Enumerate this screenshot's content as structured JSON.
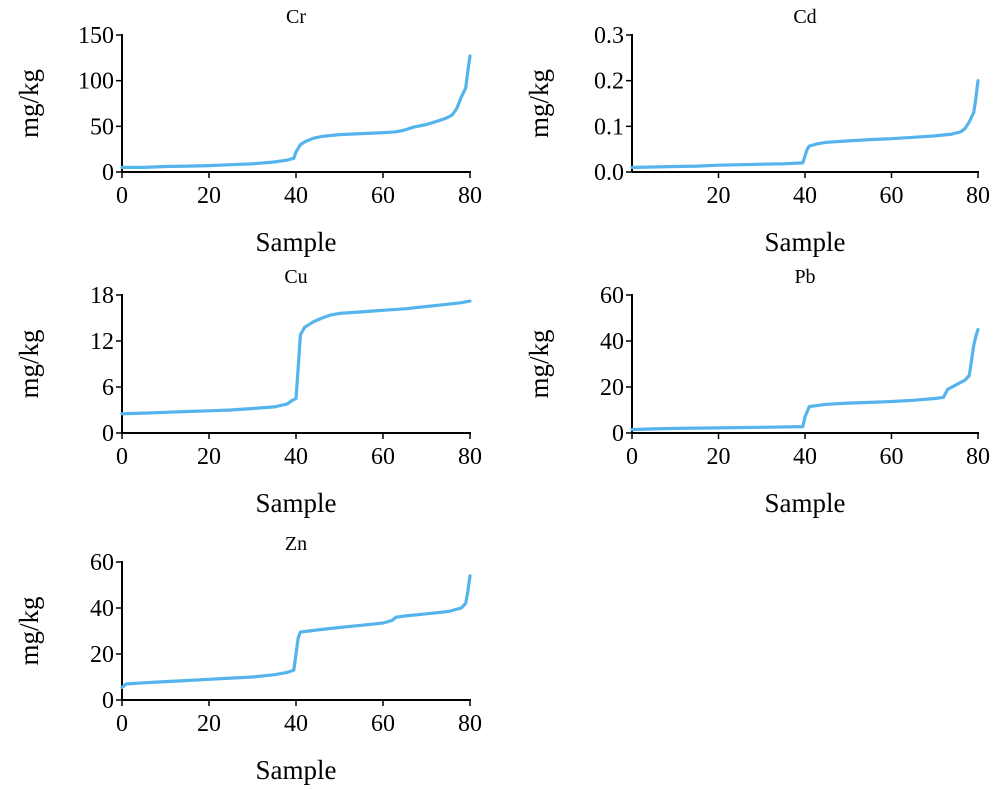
{
  "colors": {
    "line": "#55b4ec",
    "axis": "#000000"
  },
  "chart_data": [
    {
      "type": "line",
      "title": "Cr",
      "xlabel": "Sample",
      "ylabel": "mg/kg",
      "xlim": [
        0,
        80
      ],
      "ylim": [
        0,
        150
      ],
      "xticks": [
        0,
        20,
        40,
        60,
        80
      ],
      "xtick_labels": [
        "0",
        "20",
        "40",
        "60",
        "80"
      ],
      "yticks": [
        0,
        50,
        100,
        150
      ],
      "ytick_labels": [
        "0",
        "50",
        "100",
        "150"
      ],
      "grid": false,
      "series": [
        {
          "x": [
            0,
            5,
            10,
            15,
            20,
            25,
            30,
            35,
            38,
            39.5,
            40,
            40.5,
            41,
            42,
            44,
            46,
            48,
            50,
            55,
            60,
            63,
            65,
            67,
            70,
            72,
            74,
            75,
            76,
            77,
            78,
            79,
            79.5,
            80
          ],
          "y": [
            5,
            5,
            6,
            6.5,
            7,
            8,
            9,
            11,
            13,
            15,
            22,
            26,
            30,
            33,
            37,
            39,
            40,
            41,
            42,
            43,
            44,
            46,
            49,
            52,
            55,
            58,
            60,
            63,
            70,
            82,
            92,
            110,
            127
          ]
        }
      ]
    },
    {
      "type": "line",
      "title": "Cd",
      "xlabel": "Sample",
      "ylabel": "mg/kg",
      "xlim": [
        0,
        80
      ],
      "ylim": [
        0,
        0.3
      ],
      "xticks": [
        20,
        40,
        60,
        80
      ],
      "xtick_labels": [
        "20",
        "40",
        "60",
        "80"
      ],
      "yticks": [
        0,
        0.1,
        0.2,
        0.3
      ],
      "ytick_labels": [
        "0.0",
        "0.1",
        "0.2",
        "0.3"
      ],
      "grid": false,
      "series": [
        {
          "x": [
            0,
            5,
            10,
            15,
            20,
            25,
            30,
            35,
            39.5,
            40,
            40.5,
            41,
            43,
            45,
            50,
            55,
            60,
            65,
            70,
            74,
            76,
            77,
            78,
            79,
            79.5,
            80
          ],
          "y": [
            0.01,
            0.011,
            0.012,
            0.013,
            0.015,
            0.016,
            0.017,
            0.018,
            0.02,
            0.035,
            0.05,
            0.057,
            0.062,
            0.065,
            0.068,
            0.071,
            0.073,
            0.076,
            0.079,
            0.083,
            0.088,
            0.095,
            0.11,
            0.13,
            0.16,
            0.2
          ]
        }
      ]
    },
    {
      "type": "line",
      "title": "Cu",
      "xlabel": "Sample",
      "ylabel": "mg/kg",
      "xlim": [
        0,
        80
      ],
      "ylim": [
        0,
        18
      ],
      "xticks": [
        0,
        20,
        40,
        60,
        80
      ],
      "xtick_labels": [
        "0",
        "20",
        "40",
        "60",
        "80"
      ],
      "yticks": [
        0,
        6,
        12,
        18
      ],
      "ytick_labels": [
        "0",
        "6",
        "12",
        "18"
      ],
      "grid": false,
      "series": [
        {
          "x": [
            0,
            5,
            10,
            15,
            20,
            25,
            30,
            35,
            38,
            39,
            40,
            40.5,
            41,
            42,
            44,
            46,
            48,
            50,
            55,
            60,
            65,
            70,
            75,
            78,
            80
          ],
          "y": [
            2.5,
            2.6,
            2.7,
            2.8,
            2.9,
            3.0,
            3.2,
            3.4,
            3.8,
            4.2,
            4.5,
            8.5,
            12.8,
            13.8,
            14.5,
            15.0,
            15.4,
            15.6,
            15.8,
            16.0,
            16.2,
            16.5,
            16.8,
            17.0,
            17.2
          ]
        }
      ]
    },
    {
      "type": "line",
      "title": "Pb",
      "xlabel": "Sample",
      "ylabel": "mg/kg",
      "xlim": [
        0,
        80
      ],
      "ylim": [
        0,
        60
      ],
      "xticks": [
        0,
        20,
        40,
        60,
        80
      ],
      "xtick_labels": [
        "0",
        "20",
        "40",
        "60",
        "80"
      ],
      "yticks": [
        0,
        20,
        40,
        60
      ],
      "ytick_labels": [
        "0",
        "20",
        "40",
        "60"
      ],
      "grid": false,
      "series": [
        {
          "x": [
            0,
            5,
            10,
            20,
            30,
            39.5,
            40,
            41,
            45,
            50,
            55,
            60,
            65,
            70,
            72,
            73,
            75,
            77,
            78,
            79,
            79.5,
            80
          ],
          "y": [
            1.5,
            1.8,
            2.0,
            2.2,
            2.5,
            2.8,
            7,
            11.5,
            12.5,
            13,
            13.3,
            13.7,
            14.2,
            15.0,
            15.5,
            19,
            21,
            23,
            25,
            38,
            42,
            45
          ]
        }
      ]
    },
    {
      "type": "line",
      "title": "Zn",
      "xlabel": "Sample",
      "ylabel": "mg/kg",
      "xlim": [
        0,
        80
      ],
      "ylim": [
        0,
        60
      ],
      "xticks": [
        0,
        20,
        40,
        60,
        80
      ],
      "xtick_labels": [
        "0",
        "20",
        "40",
        "60",
        "80"
      ],
      "yticks": [
        0,
        20,
        40,
        60
      ],
      "ytick_labels": [
        "0",
        "20",
        "40",
        "60"
      ],
      "grid": false,
      "series": [
        {
          "x": [
            0,
            1,
            5,
            10,
            15,
            20,
            25,
            30,
            35,
            38,
            39.5,
            40,
            40.5,
            41,
            43,
            45,
            50,
            55,
            60,
            62,
            63,
            65,
            70,
            75,
            78,
            79,
            79.5,
            80
          ],
          "y": [
            5.5,
            7,
            7.5,
            8,
            8.5,
            9,
            9.5,
            10,
            11,
            12,
            13,
            20,
            27,
            29.5,
            30,
            30.5,
            31.5,
            32.5,
            33.5,
            34.5,
            36,
            36.5,
            37.5,
            38.5,
            40,
            42,
            47,
            54
          ]
        }
      ]
    }
  ]
}
